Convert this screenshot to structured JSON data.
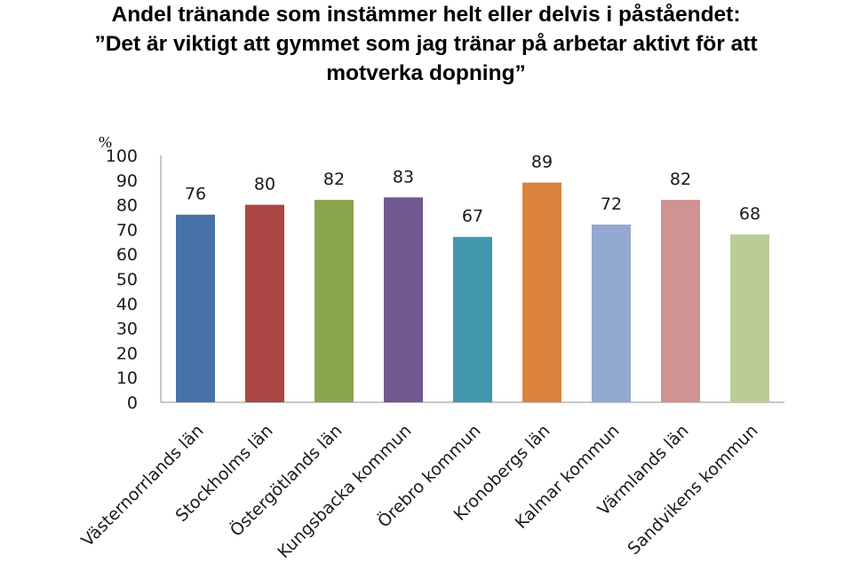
{
  "title_lines": [
    "Andel tränande som instämmer helt eller delvis i påståendet:",
    "”Det är viktigt att gymmet som jag tränar på arbetar aktivt för att",
    "motverka dopning”"
  ],
  "chart_data": {
    "type": "bar",
    "title": "Andel tränande som instämmer helt eller delvis i påståendet: ”Det är viktigt att gymmet som jag tränar på arbetar aktivt för att motverka dopning”",
    "ylabel": "%",
    "xlabel": "",
    "ylim": [
      0,
      100
    ],
    "yticks": [
      0,
      10,
      20,
      30,
      40,
      50,
      60,
      70,
      80,
      90,
      100
    ],
    "grid": false,
    "legend": "none",
    "categories": [
      "Västernorrlands län",
      "Stockholms län",
      "Östergötlands län",
      "Kungsbacka kommun",
      "Örebro kommun",
      "Kronobergs län",
      "Kalmar kommun",
      "Värmlands län",
      "Sandvikens kommun"
    ],
    "values": [
      76,
      80,
      82,
      83,
      67,
      89,
      72,
      82,
      68
    ],
    "colors": [
      "#4672a8",
      "#aa4644",
      "#89a54e",
      "#71588f",
      "#4198af",
      "#db843d",
      "#93a9cf",
      "#d09293",
      "#b9cd96"
    ]
  }
}
